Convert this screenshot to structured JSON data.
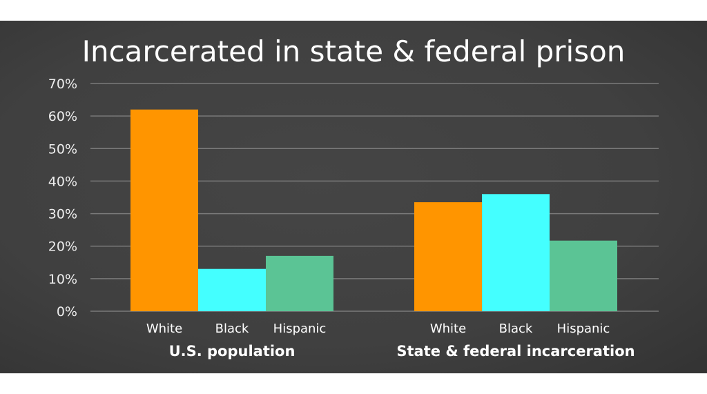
{
  "chart_data": {
    "type": "bar",
    "title": "Incarcerated in state & federal prison",
    "groups": [
      "U.S. population",
      "State & federal incarceration"
    ],
    "categories": [
      "White",
      "Black",
      "Hispanic"
    ],
    "values": [
      [
        62,
        13,
        17
      ],
      [
        33.5,
        36,
        21.7
      ]
    ],
    "colors": [
      "#ff9500",
      "#44ffff",
      "#5bc495"
    ],
    "ylim": [
      0,
      70
    ],
    "yticks": [
      "0%",
      "10%",
      "20%",
      "30%",
      "40%",
      "50%",
      "60%",
      "70%"
    ],
    "grid": true
  }
}
